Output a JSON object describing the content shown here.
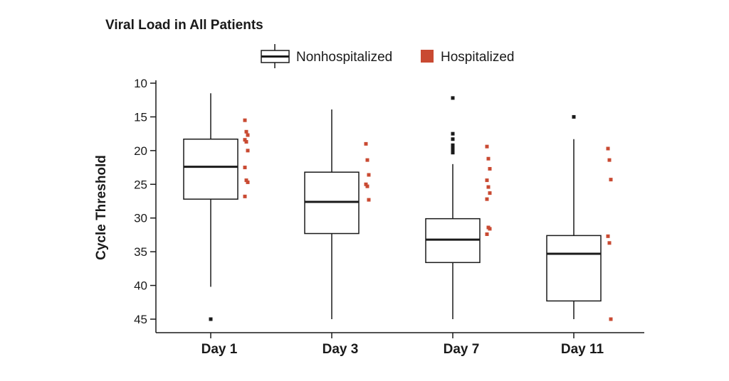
{
  "chart_data": {
    "type": "box",
    "title": "Viral Load in All Patients",
    "ylabel": "Cycle Threshold",
    "xlabel": "",
    "y_inverted": true,
    "ylim": [
      10,
      45
    ],
    "yticks": [
      "10",
      "15",
      "20",
      "25",
      "30",
      "35",
      "40",
      "45"
    ],
    "categories": [
      "Day 1",
      "Day 3",
      "Day 7",
      "Day 11"
    ],
    "legend_position": "top",
    "series": [
      {
        "name": "Nonhospitalized",
        "color": "#1a1a1a",
        "boxes": [
          {
            "whisker_low": 11.5,
            "q1": 18.3,
            "median": 22.4,
            "q3": 27.2,
            "whisker_high": 40.2,
            "outliers": [
              45.0
            ]
          },
          {
            "whisker_low": 13.9,
            "q1": 23.2,
            "median": 27.6,
            "q3": 32.3,
            "whisker_high": 45.0,
            "outliers": []
          },
          {
            "whisker_low": 22.0,
            "q1": 30.1,
            "median": 33.2,
            "q3": 36.6,
            "whisker_high": 45.0,
            "outliers": [
              12.2,
              17.5,
              18.3,
              19.2,
              19.6,
              20.0,
              20.3
            ]
          },
          {
            "whisker_low": 18.3,
            "q1": 32.6,
            "median": 35.3,
            "q3": 42.3,
            "whisker_high": 45.0,
            "outliers": [
              15.0
            ]
          }
        ]
      },
      {
        "name": "Hospitalized",
        "color": "#c94a32",
        "points": [
          [
            15.5,
            17.2,
            17.7,
            18.4,
            18.7,
            20.0,
            22.5,
            24.4,
            24.7,
            26.8
          ],
          [
            19.0,
            21.4,
            23.6,
            25.0,
            25.3,
            27.3
          ],
          [
            19.4,
            21.2,
            22.7,
            24.4,
            25.4,
            26.3,
            27.2,
            31.4,
            31.6,
            32.4
          ],
          [
            19.7,
            21.4,
            24.3,
            32.7,
            33.7,
            45.0
          ]
        ]
      }
    ]
  }
}
